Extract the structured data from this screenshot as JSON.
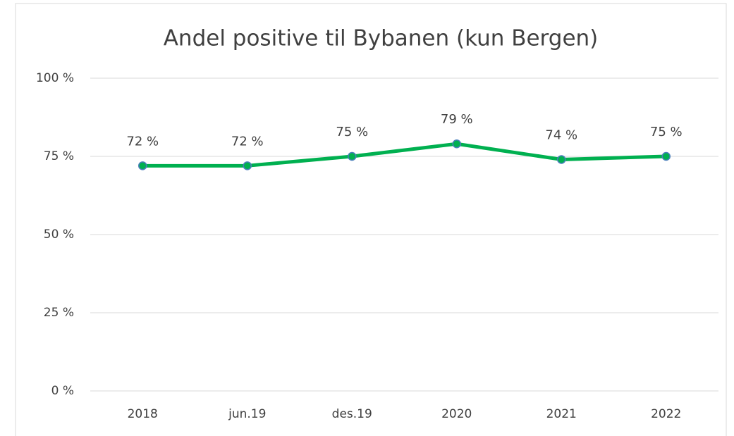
{
  "chart_data": {
    "type": "line",
    "title": "Andel positive til Bybanen (kun Bergen)",
    "categories": [
      "2018",
      "jun.19",
      "des.19",
      "2020",
      "2021",
      "2022"
    ],
    "values": [
      72,
      72,
      75,
      79,
      74,
      75
    ],
    "value_labels": [
      "72 %",
      "72 %",
      "75 %",
      "79 %",
      "74 %",
      "75 %"
    ],
    "color": "#00b050",
    "marker_edge_color": "#4a7ebb",
    "ylim": [
      0,
      100
    ],
    "yticks": [
      {
        "value": 0,
        "label": "0 %"
      },
      {
        "value": 25,
        "label": "25 %"
      },
      {
        "value": 50,
        "label": "50 %"
      },
      {
        "value": 75,
        "label": "75 %"
      },
      {
        "value": 100,
        "label": "100 %"
      }
    ],
    "grid": true
  }
}
